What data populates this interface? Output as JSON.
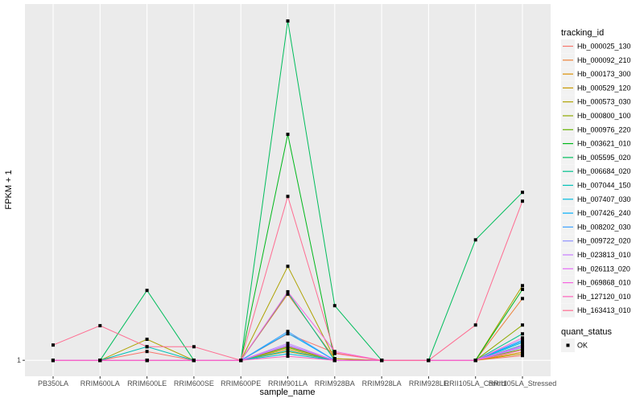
{
  "chart_data": {
    "type": "line",
    "title": "",
    "xlabel": "sample_name",
    "ylabel": "FPKM + 1",
    "y_ticks": [
      1
    ],
    "y_tick_labels": [
      "1"
    ],
    "ylim": [
      -3.7,
      106
    ],
    "grid": true,
    "legend_placement": "right",
    "categories": [
      "PB350LA",
      "RRIM600LA",
      "RRIM600LE",
      "RRIM600SE",
      "RRIM600PE",
      "RRIM901LA",
      "RRIM928BA",
      "RRIM928LA",
      "RRIM928LE",
      "RRII105LA_Control",
      "RRII105LA_Stressed"
    ],
    "legend_title": "tracking_id",
    "series": [
      {
        "name": "Hb_000025_130",
        "color": "#F8766D",
        "values": [
          1,
          1,
          3.6,
          1,
          1,
          8.8,
          3.2,
          1,
          1,
          1,
          2.4
        ]
      },
      {
        "name": "Hb_000092_210",
        "color": "#EC8239",
        "values": [
          1,
          1,
          1,
          1,
          1,
          20.5,
          1.5,
          1,
          1,
          1,
          19.2
        ]
      },
      {
        "name": "Hb_000173_300",
        "color": "#DB8E00",
        "values": [
          1,
          1,
          1,
          1,
          1,
          4.3,
          1,
          1,
          1,
          1,
          3.4
        ]
      },
      {
        "name": "Hb_000529_120",
        "color": "#C79800",
        "values": [
          1,
          1,
          1,
          1,
          1,
          3.6,
          1,
          1,
          1,
          1,
          2.9
        ]
      },
      {
        "name": "Hb_000573_030",
        "color": "#AEA200",
        "values": [
          1,
          1,
          7.2,
          1,
          1,
          28.7,
          1.5,
          1,
          1,
          1,
          23.0
        ]
      },
      {
        "name": "Hb_000800_100",
        "color": "#8FAA00",
        "values": [
          1,
          1,
          1,
          1,
          1,
          5.0,
          1,
          1,
          1,
          1,
          11.4
        ]
      },
      {
        "name": "Hb_000976_220",
        "color": "#64B200",
        "values": [
          1,
          1,
          1,
          1,
          1,
          4.8,
          1,
          1,
          1,
          1,
          4.3
        ]
      },
      {
        "name": "Hb_003621_010",
        "color": "#00B81B",
        "values": [
          1,
          1,
          1,
          1,
          1,
          67.6,
          1,
          1,
          1,
          1,
          21.9
        ]
      },
      {
        "name": "Hb_005595_020",
        "color": "#00BD5C",
        "values": [
          1,
          1,
          21.6,
          1,
          1,
          101,
          17.1,
          1,
          1,
          36.5,
          50.5
        ]
      },
      {
        "name": "Hb_006684_020",
        "color": "#00C08E",
        "values": [
          1,
          1,
          1,
          1,
          1,
          21.0,
          1,
          1,
          1,
          1,
          8.8
        ]
      },
      {
        "name": "Hb_007044_150",
        "color": "#00C1B7",
        "values": [
          1,
          1,
          5.0,
          1,
          1,
          3.8,
          1,
          1,
          1,
          1,
          5.5
        ]
      },
      {
        "name": "Hb_007407_030",
        "color": "#00BADE",
        "values": [
          1,
          1,
          1,
          1,
          1,
          2.9,
          1,
          1,
          1,
          1,
          6.2
        ]
      },
      {
        "name": "Hb_007426_240",
        "color": "#00AEFA",
        "values": [
          1,
          1,
          1,
          1,
          1,
          9.0,
          1,
          1,
          1,
          1,
          6.6
        ]
      },
      {
        "name": "Hb_008202_030",
        "color": "#3DA1FF",
        "values": [
          1,
          1,
          1,
          1,
          1,
          9.5,
          1,
          1,
          1,
          1,
          7.0
        ]
      },
      {
        "name": "Hb_009722_020",
        "color": "#8F91FF",
        "values": [
          1,
          1,
          1,
          1,
          1,
          5.5,
          1,
          1,
          1,
          1,
          4.8
        ]
      },
      {
        "name": "Hb_023813_010",
        "color": "#C77CFF",
        "values": [
          1,
          1,
          1,
          1,
          1,
          6.0,
          1,
          1,
          1,
          1,
          5.0
        ]
      },
      {
        "name": "Hb_026113_020",
        "color": "#E46DF6",
        "values": [
          1,
          1,
          1,
          1,
          1,
          5.3,
          1,
          1,
          1,
          1,
          5.3
        ]
      },
      {
        "name": "Hb_069868_010",
        "color": "#F763E0",
        "values": [
          1,
          1,
          1,
          1,
          1,
          21.2,
          3.6,
          1,
          1,
          1,
          7.6
        ]
      },
      {
        "name": "Hb_127120_010",
        "color": "#FF62BC",
        "values": [
          1,
          1,
          1,
          1,
          1,
          2.2,
          1,
          1,
          1,
          1,
          4.0
        ]
      },
      {
        "name": "Hb_163413_010",
        "color": "#FF6C91",
        "values": [
          5.5,
          11.2,
          5.0,
          5.0,
          1,
          49.3,
          3.0,
          1,
          1,
          11.4,
          47.9
        ]
      }
    ],
    "shape_legend_title": "quant_status",
    "shape_legend_items": [
      "OK"
    ]
  },
  "colors": {
    "panel": "#EBEBEB",
    "grid": "#FFFFFF",
    "point": "#000000",
    "text": "#4D4D4D"
  }
}
